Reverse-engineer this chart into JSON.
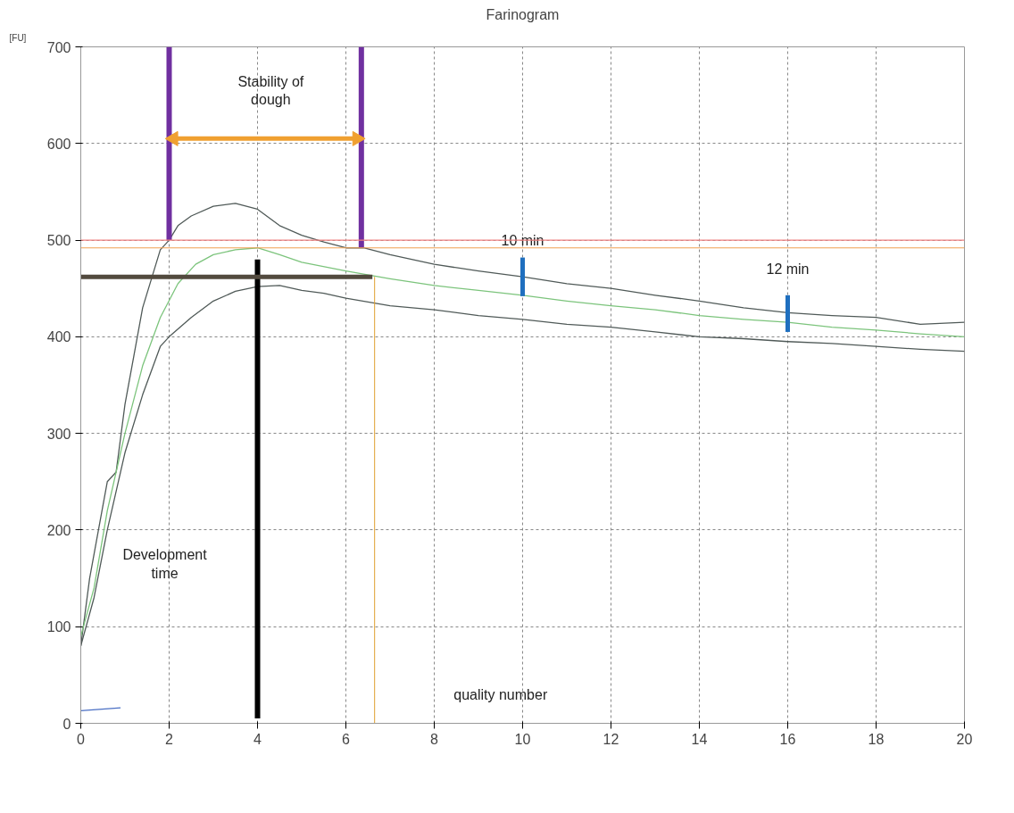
{
  "chart_data": {
    "type": "line",
    "title": "Farinogram",
    "ylabel": "[FU]",
    "xlim": [
      0,
      20
    ],
    "ylim": [
      0,
      700
    ],
    "xticks": [
      0,
      2,
      4,
      6,
      8,
      10,
      12,
      14,
      16,
      18,
      20
    ],
    "yticks": [
      0,
      100,
      200,
      300,
      400,
      500,
      600,
      700
    ],
    "grid": true,
    "line_style": "solid",
    "series": [
      {
        "color": "#505a58",
        "x": [
          0,
          0.2,
          0.4,
          0.6,
          0.8,
          1.0,
          1.2,
          1.4,
          1.6,
          1.8,
          2.0,
          2.2,
          2.5,
          3,
          3.5,
          4,
          4.5,
          5,
          5.5,
          6,
          6.4,
          7,
          8,
          9,
          10,
          11,
          12,
          13,
          14,
          15,
          16,
          17,
          18,
          19,
          20
        ],
        "values": [
          80,
          150,
          200,
          250,
          260,
          330,
          380,
          430,
          460,
          490,
          500,
          515,
          525,
          535,
          538,
          532,
          515,
          505,
          498,
          492,
          492,
          485,
          475,
          468,
          462,
          455,
          450,
          443,
          437,
          430,
          425,
          422,
          420,
          413,
          415
        ]
      },
      {
        "color": "#7cc47c",
        "x": [
          0,
          0.3,
          0.6,
          1,
          1.4,
          1.8,
          2.2,
          2.6,
          3,
          3.5,
          4,
          4.5,
          5,
          6,
          7,
          8,
          9,
          10,
          11,
          12,
          13,
          14,
          15,
          16,
          17,
          18,
          19,
          20
        ],
        "values": [
          90,
          140,
          220,
          300,
          370,
          420,
          455,
          475,
          485,
          490,
          492,
          485,
          477,
          468,
          460,
          453,
          448,
          443,
          437,
          432,
          428,
          422,
          418,
          415,
          410,
          407,
          403,
          400
        ]
      },
      {
        "color": "#505a58",
        "x": [
          0,
          0.3,
          0.6,
          1,
          1.4,
          1.8,
          2,
          2.5,
          3,
          3.5,
          4,
          4.5,
          5,
          5.5,
          6,
          7,
          8,
          9,
          10,
          11,
          12,
          13,
          14,
          15,
          16,
          17,
          18,
          19,
          20
        ],
        "values": [
          80,
          130,
          200,
          280,
          340,
          390,
          400,
          420,
          437,
          447,
          452,
          453,
          448,
          445,
          440,
          432,
          428,
          422,
          418,
          413,
          410,
          405,
          400,
          398,
          395,
          393,
          390,
          387,
          385
        ]
      },
      {
        "color": "#4a6fc4",
        "x": [
          0,
          0.9
        ],
        "values": [
          13,
          16
        ]
      },
      {
        "color": "#7030a0",
        "x": [
          2,
          2
        ],
        "values": [
          500,
          700
        ]
      },
      {
        "color": "#7030a0",
        "x": [
          6.35,
          6.35
        ],
        "values": [
          492,
          700
        ]
      },
      {
        "color": "#000000",
        "x": [
          4,
          4
        ],
        "values": [
          5,
          480
        ]
      },
      {
        "color": "#524a3e",
        "x": [
          0,
          6.6
        ],
        "values": [
          462,
          462
        ]
      },
      {
        "color": "#e0a030",
        "x": [
          6.65,
          6.65
        ],
        "values": [
          0,
          462
        ]
      },
      {
        "color": "#1f6fbf",
        "x": [
          10,
          10
        ],
        "values": [
          442,
          482
        ]
      },
      {
        "color": "#1f6fbf",
        "x": [
          16,
          16
        ],
        "values": [
          405,
          443
        ]
      },
      {
        "color": "#f0a030",
        "x": [
          2.1,
          6.25
        ],
        "values": [
          605,
          605
        ],
        "marker": "triangle"
      }
    ],
    "ref_lines": [
      {
        "axis": "y",
        "value": 500,
        "color": "#f08080"
      },
      {
        "axis": "y",
        "value": 492,
        "color": "#f0a050"
      }
    ],
    "annotations": [
      "Stability of\ndough",
      "Development\ntime",
      {
        "text": "10 min",
        "x": 10,
        "y": 500
      },
      "12 min",
      "quality number"
    ]
  }
}
